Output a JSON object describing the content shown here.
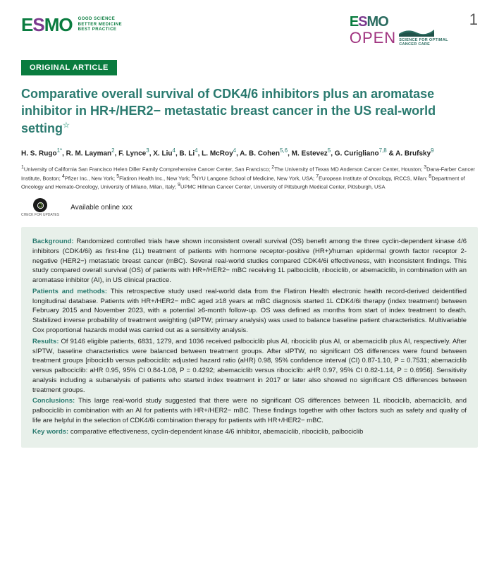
{
  "page_number": "1",
  "logo_left": {
    "letters": [
      "E",
      "S",
      "M",
      "O"
    ],
    "letter_colors": [
      "#0a7c3f",
      "#7b3a8e",
      "#0a7c3f",
      "#0a7c3f"
    ],
    "tagline_line1": "GOOD SCIENCE",
    "tagline_line2": "BETTER MEDICINE",
    "tagline_line3": "BEST PRACTICE",
    "tagline_color": "#0a7c3f"
  },
  "logo_right": {
    "letters": [
      "E",
      "S",
      "M",
      "O"
    ],
    "letter_colors": [
      "#0a7c3f",
      "#7b3a8e",
      "#2a6b5f",
      "#2a6b5f"
    ],
    "open_word": "OPEN",
    "open_color": "#a0337f",
    "wave_colors": [
      "#2a6b5f",
      "#1e4d45"
    ],
    "tagline_line1": "SCIENCE FOR OPTIMAL",
    "tagline_line2": "CANCER CARE",
    "tagline_color": "#2a6b5f"
  },
  "badge": {
    "text": "ORIGINAL ARTICLE",
    "bg_color": "#0a7c3f",
    "text_color": "#ffffff"
  },
  "title": {
    "text": "Comparative overall survival of CDK4/6 inhibitors plus an aromatase inhibitor in HR+/HER2− metastatic breast cancer in the US real-world setting",
    "color": "#2a7a6f",
    "star": "☆"
  },
  "authors_html": "H. S. Rugo<sup>1*</sup>, R. M. Layman<sup>2</sup>, F. Lynce<sup>3</sup>, X. Liu<sup>4</sup>, B. Li<sup>4</sup>, L. McRoy<sup>4</sup>, A. B. Cohen<sup>5,6</sup>, M. Estevez<sup>5</sup>, G. Curigliano<sup>7,8</sup> & A. Brufsky<sup>9</sup>",
  "affiliations_html": "<sup>1</sup>University of California San Francisco Helen Diller Family Comprehensive Cancer Center, San Francisco; <sup>2</sup>The University of Texas MD Anderson Cancer Center, Houston; <sup>3</sup>Dana-Farber Cancer Institute, Boston; <sup>4</sup>Pfizer Inc., New York; <sup>5</sup>Flatiron Health Inc., New York; <sup>6</sup>NYU Langone School of Medicine, New York, USA; <sup>7</sup>European Institute of Oncology, IRCCS, Milan; <sup>8</sup>Department of Oncology and Hemato-Oncology, University of Milano, Milan, Italy; <sup>9</sup>UPMC Hillman Cancer Center, University of Pittsburgh Medical Center, Pittsburgh, USA",
  "check_updates_label": "CHECK FOR UPDATES",
  "available_online": "Available online xxx",
  "abstract": {
    "bg_color": "#e8f0ea",
    "label_color": "#2a7a6f",
    "sections": [
      {
        "label": "Background:",
        "text": "Randomized controlled trials have shown inconsistent overall survival (OS) benefit among the three cyclin-dependent kinase 4/6 inhibitors (CDK4/6i) as first-line (1L) treatment of patients with hormone receptor-positive (HR+)/human epidermal growth factor receptor 2-negative (HER2−) metastatic breast cancer (mBC). Several real-world studies compared CDK4/6i effectiveness, with inconsistent findings. This study compared overall survival (OS) of patients with HR+/HER2− mBC receiving 1L palbociclib, ribociclib, or abemaciclib, in combination with an aromatase inhibitor (AI), in US clinical practice."
      },
      {
        "label": "Patients and methods:",
        "text": "This retrospective study used real-world data from the Flatiron Health electronic health record-derived deidentified longitudinal database. Patients with HR+/HER2− mBC aged ≥18 years at mBC diagnosis started 1L CDK4/6i therapy (index treatment) between February 2015 and November 2023, with a potential ≥6-month follow-up. OS was defined as months from start of index treatment to death. Stabilized inverse probability of treatment weighting (sIPTW; primary analysis) was used to balance baseline patient characteristics. Multivariable Cox proportional hazards model was carried out as a sensitivity analysis."
      },
      {
        "label": "Results:",
        "text": "Of 9146 eligible patients, 6831, 1279, and 1036 received palbociclib plus AI, ribociclib plus AI, or abemaciclib plus AI, respectively. After sIPTW, baseline characteristics were balanced between treatment groups. After sIPTW, no significant OS differences were found between treatment groups [ribociclib versus palbociclib: adjusted hazard ratio (aHR) 0.98, 95% confidence interval (CI) 0.87-1.10, P = 0.7531; abemaciclib versus palbociclib: aHR 0.95, 95% CI 0.84-1.08, P = 0.4292; abemaciclib versus ribociclib: aHR 0.97, 95% CI 0.82-1.14, P = 0.6956]. Sensitivity analysis including a subanalysis of patients who started index treatment in 2017 or later also showed no significant OS differences between treatment groups."
      },
      {
        "label": "Conclusions:",
        "text": "This large real-world study suggested that there were no significant OS differences between 1L ribociclib, abemaciclib, and palbociclib in combination with an AI for patients with HR+/HER2− mBC. These findings together with other factors such as safety and quality of life are helpful in the selection of CDK4/6i combination therapy for patients with HR+/HER2− mBC."
      },
      {
        "label": "Key words:",
        "text": "comparative effectiveness, cyclin-dependent kinase 4/6 inhibitor, abemaciclib, ribociclib, palbociclib"
      }
    ]
  }
}
